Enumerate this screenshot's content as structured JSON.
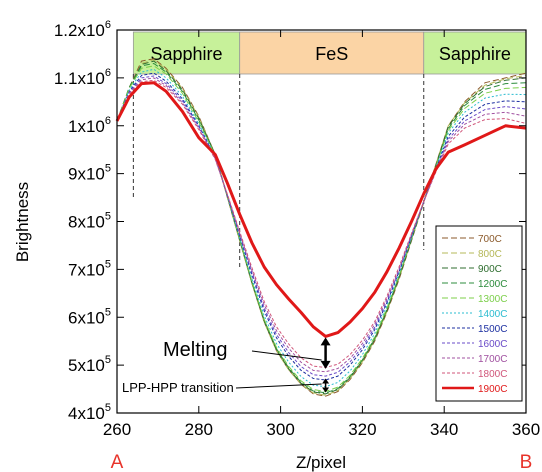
{
  "chart_data": {
    "type": "line",
    "xlabel": "Z/pixel",
    "ylabel": "Brightness",
    "xlim": [
      260,
      360
    ],
    "ylim": [
      400000,
      1200000
    ],
    "x_ticks": [
      260,
      280,
      300,
      320,
      340,
      360
    ],
    "y_ticks": [
      {
        "value": 400000,
        "base": "4x10",
        "exp": "5"
      },
      {
        "value": 500000,
        "base": "5x10",
        "exp": "5"
      },
      {
        "value": 600000,
        "base": "6x10",
        "exp": "5"
      },
      {
        "value": 700000,
        "base": "7x10",
        "exp": "5"
      },
      {
        "value": 800000,
        "base": "8x10",
        "exp": "5"
      },
      {
        "value": 900000,
        "base": "9x10",
        "exp": "5"
      },
      {
        "value": 1000000,
        "base": "1x10",
        "exp": "6"
      },
      {
        "value": 1100000,
        "base": "1.1x10",
        "exp": "6"
      },
      {
        "value": 1200000,
        "base": "1.2x10",
        "exp": "6"
      }
    ],
    "x": [
      260,
      263,
      266,
      269,
      272,
      276,
      280,
      284,
      287,
      290,
      293,
      296,
      299,
      302,
      305,
      308,
      311,
      314,
      317,
      320,
      323,
      326,
      329,
      332,
      335,
      338,
      341,
      345,
      350,
      355,
      360
    ],
    "series": [
      {
        "name": "700C",
        "color": "#8b5a2b",
        "dash": "6,3",
        "width": 1,
        "values": [
          1010000,
          1080000,
          1135000,
          1140000,
          1120000,
          1080000,
          1020000,
          940000,
          850000,
          760000,
          670000,
          590000,
          530000,
          490000,
          460000,
          440000,
          435000,
          445000,
          470000,
          505000,
          550000,
          610000,
          680000,
          760000,
          840000,
          920000,
          1000000,
          1050000,
          1090000,
          1100000,
          1110000
        ]
      },
      {
        "name": "800C",
        "color": "#b5b858",
        "dash": "6,3",
        "width": 1,
        "values": [
          1010000,
          1080000,
          1130000,
          1138000,
          1118000,
          1078000,
          1018000,
          940000,
          850000,
          760000,
          670000,
          590000,
          530000,
          490000,
          460000,
          442000,
          437000,
          447000,
          472000,
          507000,
          552000,
          612000,
          682000,
          762000,
          842000,
          920000,
          1000000,
          1048000,
          1085000,
          1098000,
          1105000
        ]
      },
      {
        "name": "900C",
        "color": "#2f6e2f",
        "dash": "6,3",
        "width": 1,
        "values": [
          1010000,
          1080000,
          1128000,
          1135000,
          1115000,
          1075000,
          1015000,
          940000,
          852000,
          762000,
          672000,
          592000,
          532000,
          492000,
          462000,
          444000,
          440000,
          449000,
          474000,
          509000,
          554000,
          614000,
          684000,
          762000,
          842000,
          918000,
          998000,
          1046000,
          1082000,
          1095000,
          1100000
        ]
      },
      {
        "name": "1200C",
        "color": "#2c8c3c",
        "dash": "6,3",
        "width": 1,
        "values": [
          1010000,
          1080000,
          1125000,
          1130000,
          1112000,
          1072000,
          1012000,
          940000,
          853000,
          763000,
          673000,
          594000,
          534000,
          494000,
          464000,
          446000,
          442000,
          451000,
          476000,
          511000,
          556000,
          616000,
          686000,
          764000,
          842000,
          916000,
          994000,
          1042000,
          1076000,
          1088000,
          1090000
        ]
      },
      {
        "name": "1300C",
        "color": "#7ccf4a",
        "dash": "6,3",
        "width": 1,
        "values": [
          1010000,
          1078000,
          1120000,
          1125000,
          1108000,
          1068000,
          1008000,
          938000,
          853000,
          764000,
          675000,
          596000,
          537000,
          497000,
          467000,
          449000,
          445000,
          454000,
          479000,
          514000,
          559000,
          619000,
          688000,
          765000,
          842000,
          915000,
          990000,
          1036000,
          1068000,
          1078000,
          1080000
        ]
      },
      {
        "name": "1400C",
        "color": "#2bbcd0",
        "dash": "2,2",
        "width": 1,
        "values": [
          1010000,
          1075000,
          1112000,
          1118000,
          1100000,
          1062000,
          1004000,
          936000,
          853000,
          766000,
          680000,
          603000,
          545000,
          506000,
          476000,
          458000,
          455000,
          464000,
          488000,
          522000,
          566000,
          624000,
          692000,
          767000,
          842000,
          913000,
          985000,
          1028000,
          1058000,
          1066000,
          1065000
        ]
      },
      {
        "name": "1500C",
        "color": "#1c2fa0",
        "dash": "3,2",
        "width": 1,
        "values": [
          1010000,
          1072000,
          1105000,
          1110000,
          1093000,
          1056000,
          1000000,
          934000,
          854000,
          770000,
          688000,
          613000,
          557000,
          518000,
          489000,
          472000,
          469000,
          477000,
          500000,
          532000,
          574000,
          630000,
          696000,
          769000,
          842000,
          910000,
          978000,
          1018000,
          1045000,
          1052000,
          1050000
        ]
      },
      {
        "name": "1600C",
        "color": "#6a4bc8",
        "dash": "3,2",
        "width": 1,
        "values": [
          1010000,
          1070000,
          1100000,
          1104000,
          1088000,
          1052000,
          998000,
          933000,
          855000,
          773000,
          693000,
          619000,
          564000,
          526000,
          497000,
          480000,
          477000,
          485000,
          507000,
          538000,
          579000,
          634000,
          699000,
          771000,
          842000,
          908000,
          972000,
          1010000,
          1034000,
          1040000,
          1035000
        ]
      },
      {
        "name": "1700C",
        "color": "#a050a0",
        "dash": "3,2",
        "width": 1,
        "values": [
          1010000,
          1068000,
          1096000,
          1100000,
          1084000,
          1048000,
          995000,
          931000,
          856000,
          776000,
          698000,
          626000,
          572000,
          535000,
          506000,
          489000,
          486000,
          493000,
          514000,
          545000,
          585000,
          639000,
          702000,
          773000,
          842000,
          906000,
          967000,
          1003000,
          1024000,
          1028000,
          1020000
        ]
      },
      {
        "name": "1800C",
        "color": "#d0567a",
        "dash": "3,2",
        "width": 1,
        "values": [
          1010000,
          1066000,
          1092000,
          1095000,
          1080000,
          1045000,
          992000,
          930000,
          857000,
          779000,
          703000,
          633000,
          580000,
          544000,
          515000,
          498000,
          495000,
          502000,
          522000,
          552000,
          591000,
          644000,
          706000,
          775000,
          842000,
          904000,
          962000,
          995000,
          1013000,
          1015000,
          1005000
        ]
      },
      {
        "name": "1900C",
        "color": "#e01818",
        "dash": "",
        "width": 3,
        "values": [
          1010000,
          1060000,
          1088000,
          1090000,
          1072000,
          1030000,
          975000,
          940000,
          880000,
          815000,
          755000,
          705000,
          668000,
          638000,
          610000,
          580000,
          560000,
          568000,
          590000,
          618000,
          652000,
          695000,
          745000,
          800000,
          858000,
          910000,
          945000,
          960000,
          980000,
          1000000,
          995000
        ]
      }
    ],
    "regions": [
      {
        "label": "Sapphire",
        "x0": 264,
        "x1": 290,
        "fill": "#c7f19a"
      },
      {
        "label": "FeS",
        "x0": 290,
        "x1": 335,
        "fill": "#fbd4a5"
      },
      {
        "label": "Sapphire",
        "x0": 335,
        "x1": 360,
        "fill": "#c7f19a"
      }
    ],
    "annotations": [
      {
        "text": "Melting",
        "x": 311,
        "y_top": 560000,
        "y_bottom": 490000
      },
      {
        "text": "LPP-HPP transition",
        "x": 311,
        "y_top": 470000,
        "y_bottom": 445000
      }
    ],
    "endpoint_labels": {
      "left": "A",
      "right": "B"
    },
    "legend_position": "bottom-right",
    "grid": false
  }
}
